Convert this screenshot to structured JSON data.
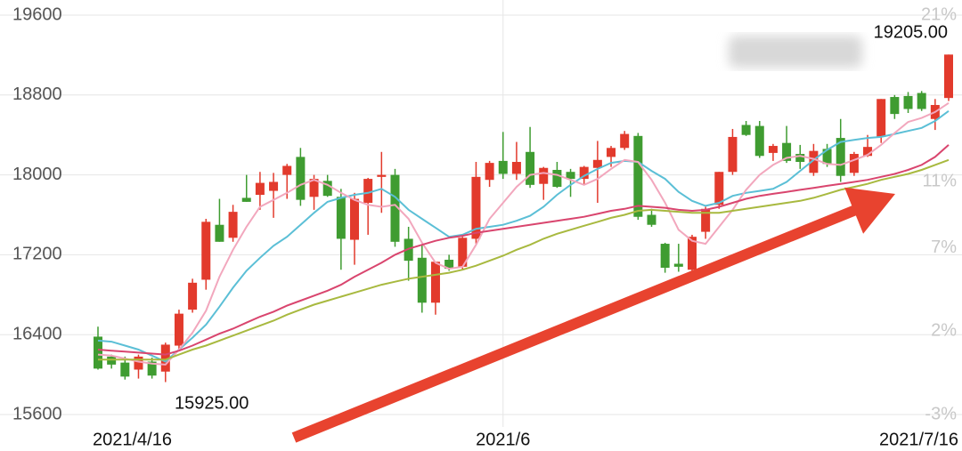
{
  "chart_data": {
    "type": "candlestick",
    "categories": [
      "2021/4/16",
      null,
      null,
      null,
      null,
      null,
      null,
      null,
      null,
      null,
      null,
      null,
      null,
      null,
      null,
      null,
      null,
      null,
      null,
      null,
      null,
      null,
      null,
      null,
      null,
      null,
      null,
      null,
      null,
      null,
      "2021/6",
      null,
      null,
      null,
      null,
      null,
      null,
      null,
      null,
      null,
      null,
      null,
      null,
      null,
      null,
      null,
      null,
      null,
      null,
      null,
      null,
      null,
      null,
      null,
      null,
      null,
      null,
      null,
      null,
      null,
      null,
      null,
      null,
      "2021/7/16"
    ],
    "open": [
      16380,
      16180,
      16120,
      16050,
      16130,
      16030,
      16290,
      16650,
      16950,
      17500,
      17370,
      17770,
      17800,
      17840,
      18000,
      18180,
      17780,
      17940,
      17780,
      17350,
      17720,
      17980,
      18000,
      17360,
      17170,
      16720,
      17150,
      17080,
      17360,
      17950,
      18140,
      18010,
      18230,
      17910,
      18050,
      18030,
      17960,
      18070,
      18180,
      18270,
      18390,
      17600,
      17310,
      17110,
      17050,
      17430,
      17700,
      18030,
      18500,
      18490,
      18220,
      18320,
      18210,
      18020,
      18260,
      18370,
      18020,
      18190,
      18380,
      18780,
      18790,
      18820,
      18560,
      18770
    ],
    "high": [
      16480,
      16200,
      16180,
      16200,
      16170,
      16320,
      16650,
      16960,
      17560,
      17760,
      17700,
      18000,
      18030,
      18020,
      18110,
      18270,
      18000,
      18000,
      17860,
      17820,
      17970,
      18230,
      18060,
      17480,
      17300,
      17120,
      17200,
      17380,
      18130,
      18140,
      18430,
      18330,
      18480,
      18080,
      18130,
      18060,
      18090,
      18340,
      18290,
      18440,
      18420,
      17660,
      17320,
      17310,
      17400,
      17680,
      18030,
      18460,
      18540,
      18540,
      18310,
      18490,
      18300,
      18310,
      18310,
      18560,
      18230,
      18400,
      18760,
      18800,
      18830,
      18840,
      18760,
      19205
    ],
    "low": [
      16050,
      16060,
      15950,
      15960,
      15960,
      15925,
      16250,
      16620,
      16850,
      17330,
      17330,
      17730,
      17650,
      17570,
      17760,
      17690,
      17650,
      17780,
      17050,
      17100,
      17400,
      17620,
      17280,
      16940,
      16620,
      16600,
      17040,
      17050,
      17310,
      17880,
      17960,
      17950,
      17870,
      17750,
      17870,
      17780,
      17900,
      17720,
      18080,
      18250,
      17550,
      17480,
      17020,
      17030,
      17000,
      17360,
      17660,
      18000,
      18390,
      18170,
      18140,
      18120,
      18060,
      17990,
      18080,
      17930,
      17990,
      18180,
      18320,
      18560,
      18620,
      18640,
      18450,
      18740
    ],
    "close": [
      16060,
      16100,
      15980,
      16180,
      15990,
      16300,
      16610,
      16920,
      17530,
      17330,
      17630,
      17730,
      17920,
      17930,
      18090,
      17750,
      17960,
      17790,
      17360,
      17760,
      17960,
      18000,
      17330,
      17140,
      16720,
      17130,
      17060,
      17370,
      17980,
      18120,
      18010,
      18130,
      17900,
      18070,
      17880,
      17960,
      18080,
      18150,
      18270,
      18410,
      17580,
      17500,
      17070,
      17080,
      17380,
      17660,
      18030,
      18380,
      18400,
      18190,
      18290,
      18140,
      18130,
      18240,
      18110,
      17990,
      18210,
      18280,
      18760,
      18610,
      18660,
      18660,
      18700,
      19205
    ],
    "up_color": "#e23a2c",
    "down_color": "#3f9c31",
    "series": [
      {
        "color": "#5bbfd6",
        "values": [
          16340,
          16330,
          16290,
          16250,
          16190,
          16130,
          16250,
          16370,
          16500,
          16680,
          16870,
          17040,
          17170,
          17290,
          17380,
          17500,
          17620,
          17730,
          17770,
          17800,
          17820,
          17860,
          17780,
          17650,
          17560,
          17470,
          17380,
          17400,
          17460,
          17480,
          17500,
          17540,
          17590,
          17680,
          17800,
          17900,
          17990,
          18060,
          18120,
          18140,
          18130,
          18040,
          17960,
          17830,
          17740,
          17690,
          17720,
          17790,
          17820,
          17840,
          17860,
          17930,
          18040,
          18150,
          18250,
          18330,
          18350,
          18370,
          18380,
          18410,
          18440,
          18470,
          18540,
          18640
        ]
      },
      {
        "color": "#f2a7bd",
        "values": [
          16200,
          16190,
          16160,
          16130,
          16110,
          16100,
          16250,
          16420,
          16640,
          16980,
          17250,
          17480,
          17680,
          17750,
          17820,
          17900,
          17950,
          17900,
          17820,
          17750,
          17700,
          17680,
          17700,
          17560,
          17320,
          17120,
          17060,
          17080,
          17300,
          17560,
          17720,
          17880,
          18000,
          18020,
          18000,
          17950,
          17900,
          17960,
          18060,
          18150,
          18130,
          17950,
          17720,
          17450,
          17340,
          17310,
          17480,
          17650,
          17850,
          18000,
          18100,
          18170,
          18190,
          18160,
          18110,
          18100,
          18150,
          18200,
          18300,
          18420,
          18530,
          18570,
          18630,
          18720
        ]
      },
      {
        "color": "#d9456e",
        "values": [
          16250,
          16240,
          16230,
          16220,
          16210,
          16200,
          16240,
          16290,
          16350,
          16410,
          16460,
          16520,
          16580,
          16630,
          16690,
          16740,
          16790,
          16840,
          16900,
          16980,
          17050,
          17120,
          17200,
          17260,
          17300,
          17340,
          17370,
          17390,
          17420,
          17440,
          17460,
          17480,
          17500,
          17520,
          17540,
          17560,
          17580,
          17610,
          17640,
          17660,
          17690,
          17680,
          17670,
          17650,
          17640,
          17650,
          17680,
          17720,
          17760,
          17790,
          17810,
          17830,
          17850,
          17870,
          17890,
          17910,
          17930,
          17950,
          17980,
          18010,
          18050,
          18100,
          18180,
          18300
        ]
      },
      {
        "color": "#a8b93f",
        "values": [
          16150,
          16150,
          16150,
          16150,
          16150,
          16150,
          16200,
          16250,
          16290,
          16340,
          16390,
          16440,
          16490,
          16540,
          16600,
          16650,
          16700,
          16740,
          16780,
          16820,
          16860,
          16900,
          16930,
          16960,
          16980,
          17000,
          17020,
          17050,
          17090,
          17140,
          17190,
          17250,
          17300,
          17360,
          17410,
          17450,
          17490,
          17530,
          17570,
          17600,
          17640,
          17650,
          17640,
          17630,
          17620,
          17620,
          17620,
          17640,
          17660,
          17680,
          17700,
          17720,
          17740,
          17770,
          17810,
          17850,
          17880,
          17910,
          17950,
          17980,
          18010,
          18050,
          18100,
          18150
        ]
      }
    ],
    "ylim": [
      15600,
      19600
    ],
    "yticks": [
      15600,
      16400,
      17200,
      18000,
      18800,
      19600
    ],
    "y2lim": [
      -3,
      21
    ],
    "y2ticks": [
      {
        "value": -3,
        "label": "-3%"
      },
      {
        "value": 2,
        "label": "2%"
      },
      {
        "value": 7,
        "label": "7%"
      },
      {
        "value": 11,
        "label": "11%"
      },
      {
        "value": 21,
        "label": "21%"
      }
    ],
    "grid": true,
    "annotations": [
      {
        "text": "15925.00"
      },
      {
        "text": "19205.00"
      }
    ]
  }
}
